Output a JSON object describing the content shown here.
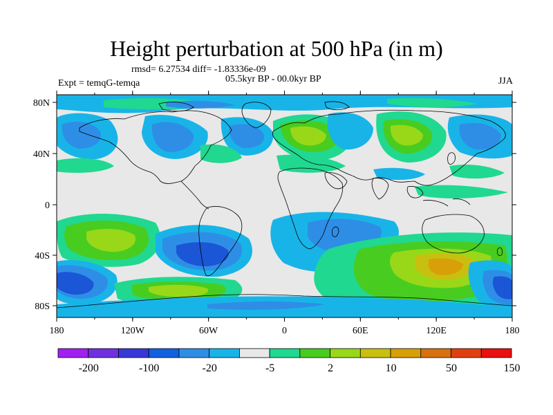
{
  "title": "Height perturbation at 500 hPa (in m)",
  "stats": "rmsd= 6.27534 diff= -1.83336e-09",
  "period": "05.5kyr BP - 00.0kyr BP",
  "experiment": "Expt = temqG-temqa",
  "season": "JJA",
  "lat_labels": [
    "80N",
    "40N",
    "0",
    "40S",
    "80S"
  ],
  "lon_labels": [
    "180",
    "120W",
    "60W",
    "0",
    "60E",
    "120E",
    "180"
  ],
  "colorbar": {
    "colors": [
      "#a020f0",
      "#7030e0",
      "#3838d8",
      "#1060e0",
      "#2e8ee6",
      "#18b4e8",
      "#e8e8e8",
      "#20d890",
      "#48cc20",
      "#98d818",
      "#c8c010",
      "#d8a008",
      "#d87010",
      "#e04010",
      "#e81010"
    ],
    "labels": [
      "-200",
      "-100",
      "-20",
      "-5",
      "2",
      "10",
      "50",
      "150"
    ]
  },
  "background_color": "#e8e8e8",
  "colors": {
    "strong_neg": "#1a56d6",
    "neg": "#2e8ee6",
    "weak_neg": "#18b4e8",
    "weak_pos": "#20d890",
    "pos": "#48cc20",
    "strong_pos": "#98d818",
    "peak_pos": "#c8c010",
    "peak_pos2": "#d8a008"
  }
}
